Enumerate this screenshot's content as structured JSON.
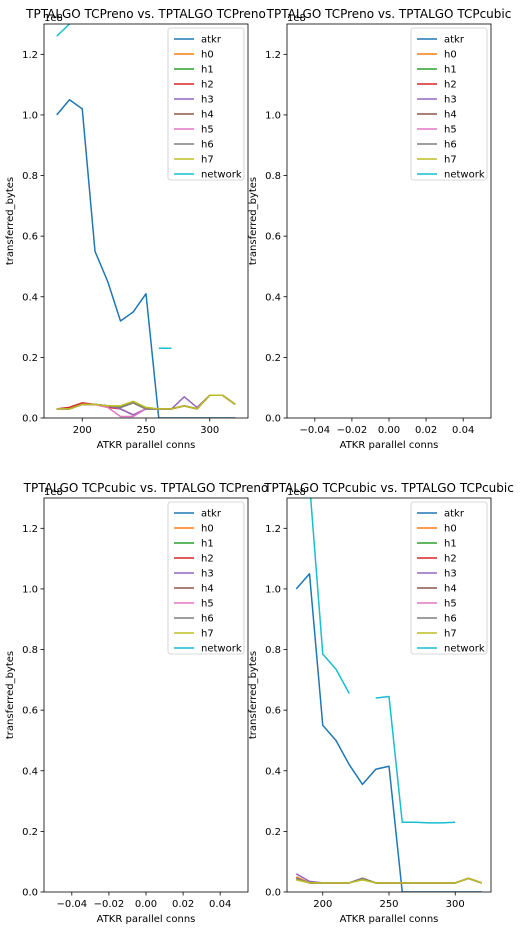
{
  "figure": {
    "series_names": [
      "atkr",
      "h0",
      "h1",
      "h2",
      "h3",
      "h4",
      "h5",
      "h6",
      "h7",
      "network"
    ],
    "colors": [
      "#1f77b4",
      "#ff7f0e",
      "#2ca02c",
      "#d62728",
      "#9467bd",
      "#8c564b",
      "#e377c2",
      "#7f7f7f",
      "#bcbd22",
      "#17becf"
    ]
  },
  "chart_data": [
    {
      "type": "line",
      "title": "TPTALGO TCPreno vs. TPTALGO TCPreno",
      "xlabel": "ATKR parallel conns",
      "ylabel": "transferred_bytes",
      "y_multiplier": "1e8",
      "xlim": [
        170,
        330
      ],
      "ylim": [
        0,
        1.3
      ],
      "xticks": [
        200,
        250,
        300
      ],
      "yticks": [
        0.0,
        0.2,
        0.4,
        0.6,
        0.8,
        1.0,
        1.2
      ],
      "legend": "top-right",
      "grid": false,
      "x": [
        180,
        190,
        200,
        210,
        220,
        230,
        240,
        250,
        260,
        270,
        280,
        290,
        300,
        310,
        320
      ],
      "series": [
        {
          "name": "atkr",
          "values": [
            1.0,
            1.05,
            1.02,
            0.55,
            0.45,
            0.32,
            0.35,
            0.41,
            0.0,
            0.0,
            0.0,
            0.0,
            0.0,
            0.0,
            0.0
          ]
        },
        {
          "name": "h0",
          "values": [
            0.03,
            0.03,
            0.045,
            0.045,
            0.04,
            0.035,
            0.05,
            0.03,
            0.03,
            0.03,
            0.04,
            0.03,
            0.075,
            0.075,
            0.045
          ]
        },
        {
          "name": "h1",
          "values": [
            0.03,
            0.03,
            0.045,
            0.045,
            0.04,
            0.035,
            0.05,
            0.03,
            0.03,
            0.03,
            0.04,
            0.03,
            0.075,
            0.075,
            0.045
          ]
        },
        {
          "name": "h2",
          "values": [
            0.03,
            0.035,
            0.05,
            0.045,
            0.035,
            0.03,
            0.01,
            0.03,
            0.03,
            0.03,
            0.04,
            0.03,
            0.075,
            0.075,
            0.045
          ]
        },
        {
          "name": "h3",
          "values": [
            0.03,
            0.03,
            0.045,
            0.045,
            0.04,
            0.03,
            0.01,
            0.03,
            0.03,
            0.03,
            0.07,
            0.035,
            0.075,
            0.075,
            0.045
          ]
        },
        {
          "name": "h4",
          "values": [
            0.03,
            0.03,
            0.045,
            0.045,
            0.04,
            0.035,
            0.05,
            0.03,
            0.03,
            0.03,
            0.04,
            0.03,
            0.075,
            0.075,
            0.045
          ]
        },
        {
          "name": "h5",
          "values": [
            0.03,
            0.03,
            0.045,
            0.045,
            0.035,
            0.005,
            0.005,
            0.03,
            0.03,
            0.03,
            0.04,
            0.03,
            0.075,
            0.075,
            0.045
          ]
        },
        {
          "name": "h6",
          "values": [
            0.03,
            0.03,
            0.045,
            0.045,
            0.04,
            0.035,
            0.05,
            0.03,
            0.03,
            0.03,
            0.04,
            0.03,
            0.075,
            0.075,
            0.045
          ]
        },
        {
          "name": "h7",
          "values": [
            0.03,
            0.03,
            0.045,
            0.045,
            0.04,
            0.04,
            0.055,
            0.035,
            0.03,
            0.03,
            0.04,
            0.03,
            0.075,
            0.075,
            0.045
          ]
        },
        {
          "name": "network",
          "values": [
            1.26,
            1.3,
            null,
            null,
            null,
            null,
            null,
            null,
            0.23,
            0.23,
            null,
            null,
            null,
            null,
            null
          ]
        }
      ]
    },
    {
      "type": "line",
      "title": "TPTALGO TCPreno vs. TPTALGO TCPcubic",
      "xlabel": "ATKR parallel conns",
      "ylabel": "transferred_bytes",
      "y_multiplier": "1e8",
      "xlim": [
        -0.055,
        0.055
      ],
      "ylim": [
        0,
        1.3
      ],
      "xticks": [
        -0.04,
        -0.02,
        0.0,
        0.02,
        0.04
      ],
      "xtick_labels": [
        "−0.04",
        "−0.02",
        "0.00",
        "0.02",
        "0.04"
      ],
      "yticks": [
        0.0,
        0.2,
        0.4,
        0.6,
        0.8,
        1.0,
        1.2
      ],
      "legend": "top-right",
      "grid": false,
      "x": [],
      "series": []
    },
    {
      "type": "line",
      "title": "TPTALGO TCPcubic vs. TPTALGO TCPreno",
      "xlabel": "ATKR parallel conns",
      "ylabel": "transferred_bytes",
      "y_multiplier": "1e8",
      "xlim": [
        -0.055,
        0.055
      ],
      "ylim": [
        0,
        1.3
      ],
      "xticks": [
        -0.04,
        -0.02,
        0.0,
        0.02,
        0.04
      ],
      "xtick_labels": [
        "−0.04",
        "−0.02",
        "0.00",
        "0.02",
        "0.04"
      ],
      "yticks": [
        0.0,
        0.2,
        0.4,
        0.6,
        0.8,
        1.0,
        1.2
      ],
      "legend": "top-right",
      "grid": false,
      "x": [],
      "series": []
    },
    {
      "type": "line",
      "title": "TPTALGO TCPcubic vs. TPTALGO TCPcubic",
      "xlabel": "ATKR parallel conns",
      "ylabel": "transferred_bytes",
      "y_multiplier": "1e8",
      "xlim": [
        173,
        327
      ],
      "ylim": [
        0,
        1.3
      ],
      "xticks": [
        200,
        250,
        300
      ],
      "yticks": [
        0.0,
        0.2,
        0.4,
        0.6,
        0.8,
        1.0,
        1.2
      ],
      "legend": "top-right",
      "grid": false,
      "x": [
        180,
        190,
        200,
        210,
        220,
        230,
        240,
        250,
        260,
        270,
        280,
        290,
        300,
        310,
        320
      ],
      "series": [
        {
          "name": "atkr",
          "values": [
            1.0,
            1.05,
            0.55,
            0.5,
            0.42,
            0.355,
            0.405,
            0.415,
            0.0,
            0.0,
            0.0,
            0.0,
            0.0,
            0.0,
            0.0
          ]
        },
        {
          "name": "h0",
          "values": [
            0.05,
            0.03,
            0.03,
            0.03,
            0.03,
            0.045,
            0.03,
            0.03,
            0.03,
            0.03,
            0.03,
            0.03,
            0.03,
            0.045,
            0.03
          ]
        },
        {
          "name": "h1",
          "values": [
            0.045,
            0.03,
            0.03,
            0.03,
            0.03,
            0.045,
            0.03,
            0.03,
            0.03,
            0.03,
            0.03,
            0.03,
            0.03,
            0.045,
            0.03
          ]
        },
        {
          "name": "h2",
          "values": [
            0.045,
            0.03,
            0.03,
            0.03,
            0.03,
            0.045,
            0.03,
            0.03,
            0.03,
            0.03,
            0.03,
            0.03,
            0.03,
            0.045,
            0.03
          ]
        },
        {
          "name": "h3",
          "values": [
            0.06,
            0.035,
            0.03,
            0.03,
            0.03,
            0.045,
            0.03,
            0.03,
            0.03,
            0.03,
            0.03,
            0.03,
            0.03,
            0.045,
            0.03
          ]
        },
        {
          "name": "h4",
          "values": [
            0.045,
            0.03,
            0.03,
            0.03,
            0.03,
            0.045,
            0.03,
            0.03,
            0.03,
            0.03,
            0.03,
            0.03,
            0.03,
            0.045,
            0.03
          ]
        },
        {
          "name": "h5",
          "values": [
            0.045,
            0.03,
            0.03,
            0.03,
            0.03,
            0.045,
            0.03,
            0.03,
            0.03,
            0.03,
            0.03,
            0.03,
            0.03,
            0.045,
            0.03
          ]
        },
        {
          "name": "h6",
          "values": [
            0.045,
            0.03,
            0.03,
            0.03,
            0.03,
            0.045,
            0.03,
            0.03,
            0.03,
            0.03,
            0.03,
            0.03,
            0.03,
            0.045,
            0.03
          ]
        },
        {
          "name": "h7",
          "values": [
            0.04,
            0.03,
            0.03,
            0.03,
            0.03,
            0.04,
            0.03,
            0.03,
            0.03,
            0.03,
            0.03,
            0.03,
            0.03,
            0.045,
            0.03
          ]
        },
        {
          "name": "network",
          "values": [
            null,
            1.35,
            0.785,
            0.735,
            0.655,
            null,
            0.64,
            0.645,
            0.23,
            0.23,
            0.228,
            0.228,
            0.23,
            null,
            null
          ]
        }
      ]
    }
  ]
}
